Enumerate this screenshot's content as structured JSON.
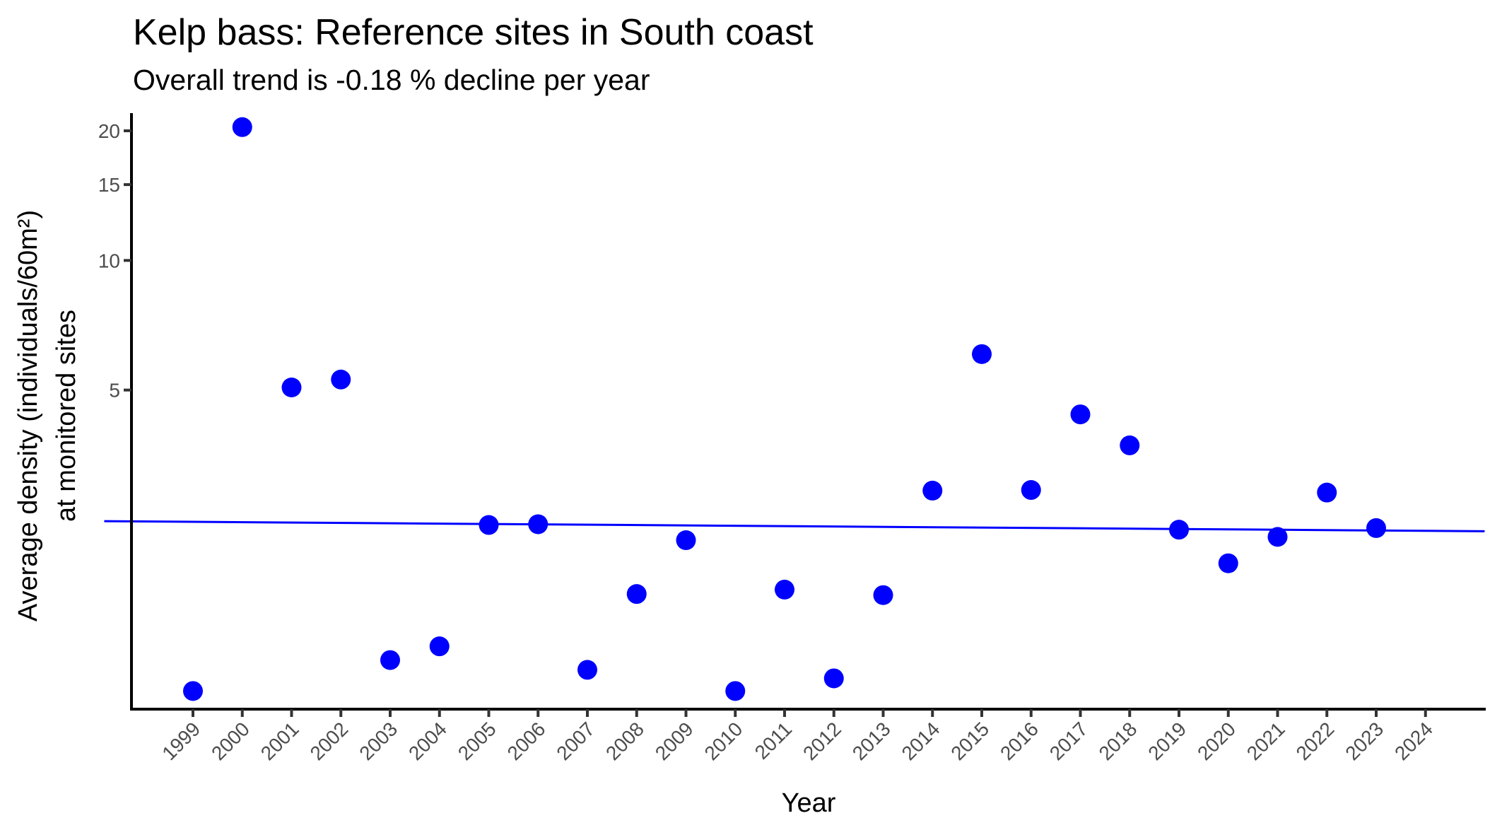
{
  "chart_data": {
    "type": "scatter",
    "title": "Kelp bass: Reference sites in South coast",
    "subtitle": "Overall trend is -0.18 % decline per year",
    "xlabel": "Year",
    "ylabel": "Average density (individuals/60m²)\nat monitored sites",
    "ylabel_lines": [
      "Average density (individuals/60m²)",
      "at monitored sites"
    ],
    "y_scale": "log",
    "ylim": [
      0.91,
      22
    ],
    "y_ticks": [
      5,
      10,
      15,
      20
    ],
    "x_ticks": [
      1999,
      2000,
      2001,
      2002,
      2003,
      2004,
      2005,
      2006,
      2007,
      2008,
      2009,
      2010,
      2011,
      2012,
      2013,
      2014,
      2015,
      2016,
      2017,
      2018,
      2019,
      2020,
      2021,
      2022,
      2023,
      2024
    ],
    "xlim": [
      1997.2,
      2025.2
    ],
    "grid": false,
    "legend": null,
    "series": [
      {
        "name": "Average density",
        "kind": "points",
        "color": "#0000ff",
        "x": [
          1999,
          2000,
          2001,
          2002,
          2003,
          2004,
          2005,
          2006,
          2007,
          2008,
          2009,
          2010,
          2011,
          2012,
          2013,
          2014,
          2015,
          2016,
          2017,
          2018,
          2019,
          2020,
          2021,
          2022,
          2023
        ],
        "values": [
          1.0,
          20.4,
          5.07,
          5.29,
          1.18,
          1.27,
          2.43,
          2.44,
          1.12,
          1.68,
          2.24,
          1.0,
          1.72,
          1.07,
          1.67,
          2.92,
          6.06,
          2.93,
          4.39,
          3.72,
          2.37,
          1.98,
          2.28,
          2.89,
          2.39
        ]
      },
      {
        "name": "Trend line",
        "kind": "line",
        "color": "#0000ff",
        "x": [
          1997.2,
          2025.2
        ],
        "values": [
          2.48,
          2.35
        ]
      }
    ]
  },
  "colors": {
    "points": "#0000ff",
    "trend": "#0000ff",
    "axis": "#000000",
    "tick_text": "#4d4d4d"
  }
}
